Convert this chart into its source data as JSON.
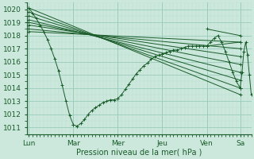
{
  "xlabel": "Pression niveau de la mer( hPa )",
  "bg_color": "#cce8dd",
  "plot_bg_color": "#cce8dd",
  "grid_major_color": "#99ccbb",
  "grid_minor_color": "#bbddcc",
  "line_color": "#1a5c2a",
  "marker": "+",
  "ylim": [
    1010.5,
    1020.5
  ],
  "yticks": [
    1011,
    1012,
    1013,
    1014,
    1015,
    1016,
    1017,
    1018,
    1019,
    1020
  ],
  "day_labels": [
    "Lun",
    "Mar",
    "Mer",
    "Jeu",
    "Ven",
    "Sa"
  ],
  "day_positions": [
    0,
    48,
    96,
    144,
    192,
    228
  ],
  "xlim": [
    -2,
    240
  ],
  "fan_lines": [
    {
      "x": [
        0,
        228
      ],
      "y": [
        1020.1,
        1013.5
      ]
    },
    {
      "x": [
        0,
        228
      ],
      "y": [
        1019.8,
        1014.0
      ]
    },
    {
      "x": [
        0,
        228
      ],
      "y": [
        1019.5,
        1014.6
      ]
    },
    {
      "x": [
        0,
        228
      ],
      "y": [
        1019.2,
        1015.2
      ]
    },
    {
      "x": [
        0,
        228
      ],
      "y": [
        1019.0,
        1015.8
      ]
    },
    {
      "x": [
        0,
        228
      ],
      "y": [
        1018.8,
        1016.4
      ]
    },
    {
      "x": [
        0,
        228
      ],
      "y": [
        1018.5,
        1017.0
      ]
    },
    {
      "x": [
        0,
        228
      ],
      "y": [
        1018.3,
        1017.5
      ]
    }
  ],
  "detail_segments": [
    {
      "x": [
        0,
        4,
        8,
        12,
        16,
        20,
        24,
        28,
        32,
        36,
        40,
        44,
        48
      ],
      "y": [
        1020.1,
        1019.7,
        1019.3,
        1018.8,
        1018.3,
        1017.7,
        1017.0,
        1016.2,
        1015.3,
        1014.2,
        1013.0,
        1011.9,
        1011.2
      ]
    },
    {
      "x": [
        48,
        52,
        56,
        60,
        64,
        68,
        72,
        76,
        80,
        84,
        88,
        92,
        96
      ],
      "y": [
        1011.2,
        1011.1,
        1011.3,
        1011.6,
        1012.0,
        1012.3,
        1012.5,
        1012.7,
        1012.9,
        1013.0,
        1013.1,
        1013.1,
        1013.2
      ]
    },
    {
      "x": [
        96,
        100,
        104,
        108,
        112,
        116,
        120,
        124,
        128,
        132,
        136,
        140,
        144
      ],
      "y": [
        1013.2,
        1013.5,
        1013.9,
        1014.3,
        1014.7,
        1015.1,
        1015.4,
        1015.7,
        1015.9,
        1016.2,
        1016.4,
        1016.5,
        1016.6
      ]
    },
    {
      "x": [
        144,
        148,
        152,
        156,
        160,
        164,
        168,
        172,
        176,
        180,
        184,
        188,
        192
      ],
      "y": [
        1016.6,
        1016.7,
        1016.8,
        1016.9,
        1016.9,
        1017.0,
        1017.1,
        1017.2,
        1017.2,
        1017.2,
        1017.2,
        1017.2,
        1017.2
      ]
    },
    {
      "x": [
        192,
        196,
        200,
        204,
        208,
        212,
        216,
        220,
        224,
        228
      ],
      "y": [
        1017.2,
        1017.5,
        1017.8,
        1018.0,
        1017.5,
        1016.8,
        1016.0,
        1015.2,
        1014.5,
        1014.0
      ]
    },
    {
      "x": [
        228,
        230,
        232,
        234,
        236,
        238,
        240
      ],
      "y": [
        1014.0,
        1015.2,
        1016.8,
        1017.5,
        1016.5,
        1015.0,
        1013.5
      ]
    }
  ],
  "right_end_markers": [
    {
      "x": [
        192,
        228
      ],
      "y": [
        1018.5,
        1018.0
      ]
    },
    {
      "x": [
        192,
        228
      ],
      "y": [
        1017.2,
        1017.5
      ]
    }
  ]
}
